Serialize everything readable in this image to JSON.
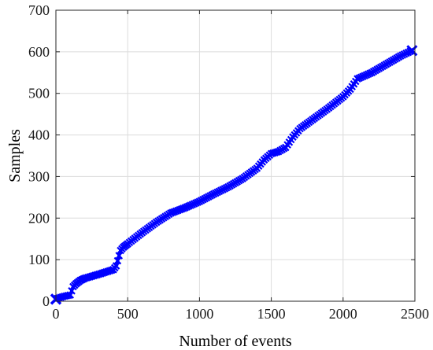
{
  "chart_data": {
    "type": "line",
    "title": "",
    "xlabel": "Number of events",
    "ylabel": "Samples",
    "xlim": [
      0,
      2500
    ],
    "ylim": [
      0,
      700
    ],
    "xticks": [
      0,
      500,
      1000,
      1500,
      2000,
      2500
    ],
    "yticks": [
      0,
      100,
      200,
      300,
      400,
      500,
      600,
      700
    ],
    "xtick_labels": [
      "0",
      "500",
      "1000",
      "1500",
      "2000",
      "2500"
    ],
    "ytick_labels": [
      "0",
      "100",
      "200",
      "300",
      "400",
      "500",
      "600",
      "700"
    ],
    "grid": true,
    "legend": "none",
    "series": [
      {
        "color": "#0000ff",
        "marker": "x",
        "x": [
          0,
          20,
          60,
          100,
          120,
          140,
          170,
          200,
          300,
          400,
          420,
          450,
          470,
          500,
          600,
          700,
          800,
          900,
          1000,
          1100,
          1200,
          1300,
          1400,
          1450,
          1500,
          1550,
          1600,
          1650,
          1700,
          1800,
          1900,
          2000,
          2050,
          2100,
          2200,
          2300,
          2400,
          2480
        ],
        "y": [
          5,
          8,
          12,
          15,
          35,
          42,
          50,
          55,
          65,
          76,
          85,
          122,
          130,
          138,
          165,
          190,
          212,
          225,
          240,
          258,
          275,
          295,
          320,
          340,
          355,
          360,
          370,
          395,
          415,
          440,
          465,
          492,
          510,
          535,
          550,
          570,
          590,
          603
        ]
      }
    ]
  }
}
